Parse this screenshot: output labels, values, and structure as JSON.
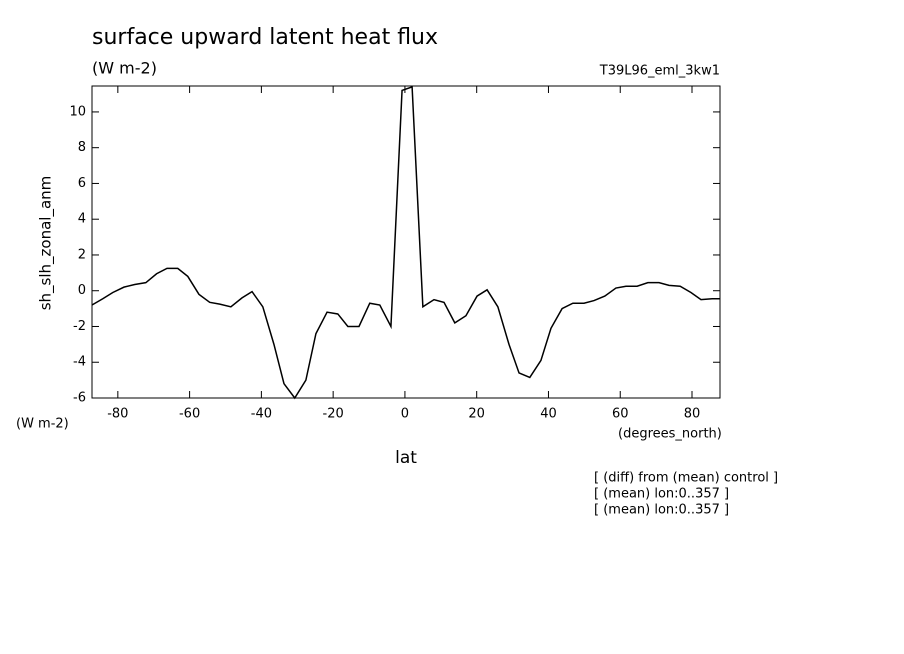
{
  "chart_data": {
    "type": "line",
    "title": "surface upward latent heat flux",
    "subtitle": "(W m-2)",
    "dataset": "T39L96_eml_3kw1",
    "ylabel": "sh_slh_zonal_anm",
    "yunits": "(W m-2)",
    "xunits": "(degrees_north)",
    "xlabel": "lat",
    "notes": [
      "[ (diff) from (mean) control ]",
      "[ (mean) lon:0..357 ]",
      "[ (mean) lon:0..357 ]"
    ],
    "color": "#000000",
    "x": [
      -87.2,
      -84.2,
      -81.4,
      -78.3,
      -75.3,
      -72.2,
      -69.2,
      -66.3,
      -63.3,
      -60.5,
      -57.4,
      -54.4,
      -51.6,
      -48.5,
      -45.4,
      -42.6,
      -39.6,
      -36.5,
      -33.7,
      -30.7,
      -27.6,
      -24.8,
      -21.7,
      -18.7,
      -15.9,
      -12.8,
      -9.8,
      -7.0,
      -3.9,
      -0.8,
      2.0,
      5.0,
      8.1,
      10.9,
      13.9,
      17.0,
      20.1,
      22.9,
      25.9,
      29.0,
      31.8,
      34.8,
      37.9,
      40.7,
      43.8,
      46.8,
      49.9,
      52.7,
      55.7,
      58.8,
      61.6,
      64.7,
      67.7,
      70.8,
      73.6,
      76.7,
      79.7,
      82.5,
      85.6,
      87.8
    ],
    "values": [
      -0.8,
      -0.45,
      -0.1,
      0.2,
      0.35,
      0.45,
      0.95,
      1.25,
      1.25,
      0.8,
      -0.2,
      -0.65,
      -0.75,
      -0.9,
      -0.4,
      -0.05,
      -0.9,
      -3,
      -5.2,
      -6,
      -5,
      -2.4,
      -1.2,
      -1.3,
      -2,
      -2,
      -0.7,
      -0.8,
      -2,
      11.2,
      11.4,
      -0.9,
      -0.5,
      -0.65,
      -1.8,
      -1.4,
      -0.3,
      0.05,
      -0.9,
      -3,
      -4.6,
      -4.85,
      -3.9,
      -2.1,
      -1.0,
      -0.7,
      -0.7,
      -0.55,
      -0.3,
      0.15,
      0.25,
      0.25,
      0.45,
      0.45,
      0.3,
      0.25,
      -0.1,
      -0.5,
      -0.45,
      -0.45
    ],
    "xlim": [
      -87.2,
      87.8
    ],
    "ylim": [
      -6,
      11.45
    ],
    "xticks": [
      -80,
      -60,
      -40,
      -20,
      0,
      20,
      40,
      60,
      80
    ],
    "yticks": [
      -6,
      -4,
      -2,
      0,
      2,
      4,
      6,
      8,
      10
    ]
  }
}
